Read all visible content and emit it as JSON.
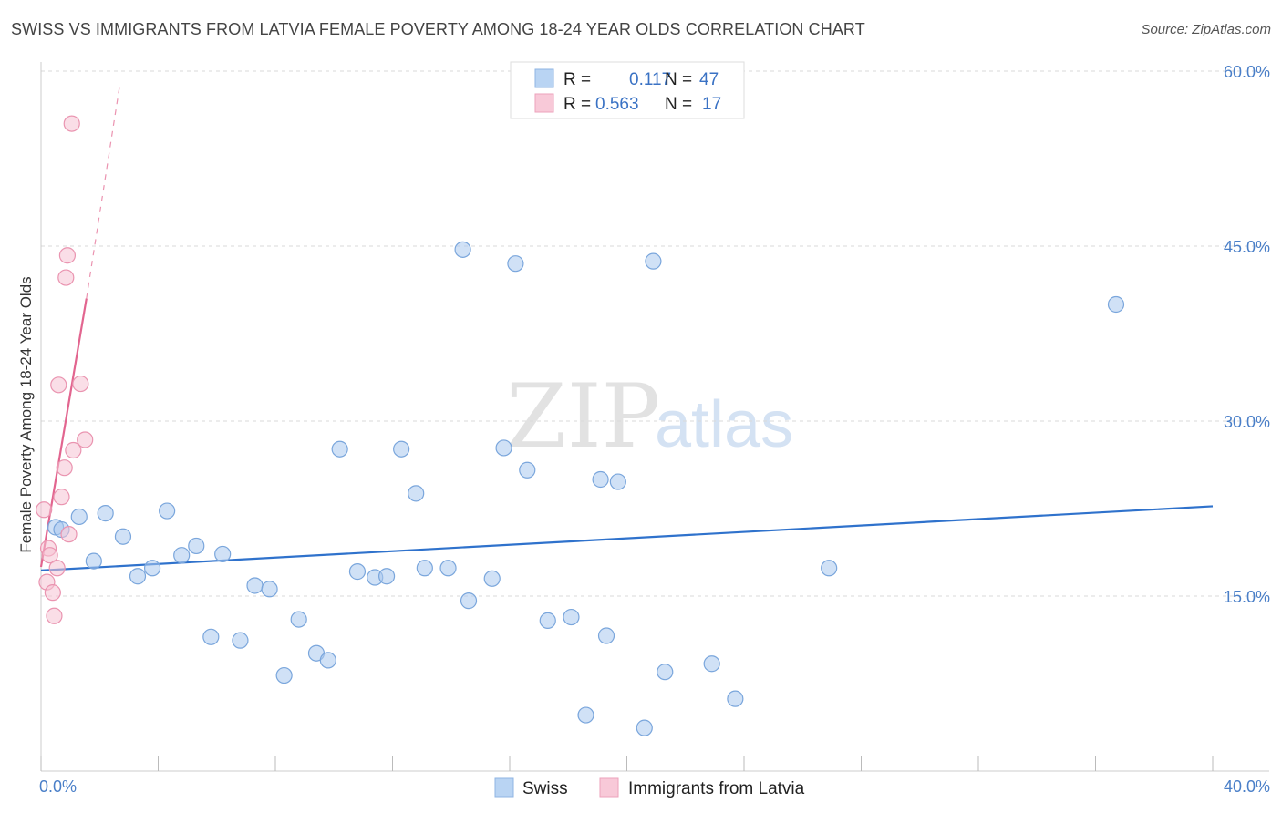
{
  "title": "SWISS VS IMMIGRANTS FROM LATVIA FEMALE POVERTY AMONG 18-24 YEAR OLDS CORRELATION CHART",
  "source": "Source: ZipAtlas.com",
  "watermark": {
    "zip": "ZIP",
    "atlas": "atlas"
  },
  "chart_data": {
    "type": "scatter",
    "title": "SWISS VS IMMIGRANTS FROM LATVIA FEMALE POVERTY AMONG 18-24 YEAR OLDS CORRELATION CHART",
    "xlabel": "",
    "ylabel": "Female Poverty Among 18-24 Year Olds",
    "xlim": [
      0,
      40
    ],
    "ylim": [
      0,
      60
    ],
    "x_tick_labels": [
      "0.0%",
      "40.0%"
    ],
    "y_ticks": [
      15,
      30,
      45,
      60
    ],
    "y_tick_labels": [
      "15.0%",
      "30.0%",
      "45.0%",
      "60.0%"
    ],
    "grid": true,
    "legend": {
      "position": "top-center",
      "entries": [
        {
          "series": "Swiss",
          "r_label": "R =",
          "r_value": "0.117",
          "n_label": "N =",
          "n_value": "47"
        },
        {
          "series": "Immigrants from Latvia",
          "r_label": "R =",
          "r_value": "0.563",
          "n_label": "N =",
          "n_value": "17"
        }
      ]
    },
    "series": [
      {
        "name": "Swiss",
        "color": "#a9c8ef",
        "stroke": "#7aa6dc",
        "trend_color": "#2f72cc",
        "trend": {
          "x": [
            0,
            40
          ],
          "y": [
            17.2,
            22.7
          ]
        },
        "points": [
          [
            0.5,
            20.9
          ],
          [
            0.7,
            20.7
          ],
          [
            1.3,
            21.8
          ],
          [
            1.8,
            18.0
          ],
          [
            2.2,
            22.1
          ],
          [
            2.8,
            20.1
          ],
          [
            3.3,
            16.7
          ],
          [
            3.8,
            17.4
          ],
          [
            4.3,
            22.3
          ],
          [
            4.8,
            18.5
          ],
          [
            5.3,
            19.3
          ],
          [
            5.8,
            11.5
          ],
          [
            6.2,
            18.6
          ],
          [
            6.8,
            11.2
          ],
          [
            7.3,
            15.9
          ],
          [
            7.8,
            15.6
          ],
          [
            8.3,
            8.2
          ],
          [
            8.8,
            13.0
          ],
          [
            9.4,
            10.1
          ],
          [
            9.8,
            9.5
          ],
          [
            10.2,
            27.6
          ],
          [
            10.8,
            17.1
          ],
          [
            11.4,
            16.6
          ],
          [
            11.8,
            16.7
          ],
          [
            12.3,
            27.6
          ],
          [
            12.8,
            23.8
          ],
          [
            13.1,
            17.4
          ],
          [
            13.9,
            17.4
          ],
          [
            14.4,
            44.7
          ],
          [
            14.6,
            14.6
          ],
          [
            15.4,
            16.5
          ],
          [
            15.8,
            27.7
          ],
          [
            16.2,
            43.5
          ],
          [
            16.6,
            25.8
          ],
          [
            17.3,
            12.9
          ],
          [
            18.1,
            13.2
          ],
          [
            18.6,
            4.8
          ],
          [
            19.1,
            25.0
          ],
          [
            19.3,
            11.6
          ],
          [
            19.7,
            24.8
          ],
          [
            20.6,
            3.7
          ],
          [
            20.9,
            43.7
          ],
          [
            21.3,
            8.5
          ],
          [
            22.9,
            9.2
          ],
          [
            23.7,
            6.2
          ],
          [
            26.9,
            17.4
          ],
          [
            36.7,
            40.0
          ]
        ]
      },
      {
        "name": "Immigrants from Latvia",
        "color": "#f6c3d3",
        "stroke": "#ea94b0",
        "trend_color": "#e2658f",
        "trend": {
          "x": [
            0,
            1.55
          ],
          "y": [
            17.5,
            40.5
          ]
        },
        "trend_dashed": {
          "x": [
            1.55,
            2.7
          ],
          "y": [
            40.5,
            59.0
          ]
        },
        "points": [
          [
            0.1,
            22.4
          ],
          [
            0.2,
            16.2
          ],
          [
            0.25,
            19.1
          ],
          [
            0.3,
            18.5
          ],
          [
            0.4,
            15.3
          ],
          [
            0.45,
            13.3
          ],
          [
            0.55,
            17.4
          ],
          [
            0.6,
            33.1
          ],
          [
            0.7,
            23.5
          ],
          [
            0.8,
            26.0
          ],
          [
            0.85,
            42.3
          ],
          [
            0.9,
            44.2
          ],
          [
            0.95,
            20.3
          ],
          [
            1.05,
            55.5
          ],
          [
            1.1,
            27.5
          ],
          [
            1.35,
            33.2
          ],
          [
            1.5,
            28.4
          ]
        ]
      }
    ]
  }
}
